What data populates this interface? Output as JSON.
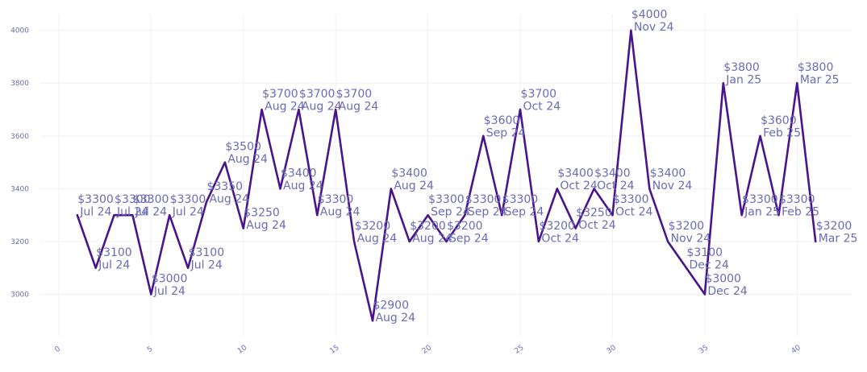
{
  "chart_data": {
    "type": "line",
    "title": "",
    "xlabel": "",
    "ylabel": "",
    "xlim": [
      -1,
      43
    ],
    "ylim": [
      2840,
      4060
    ],
    "xticks": [
      0,
      5,
      10,
      15,
      20,
      25,
      30,
      35,
      40
    ],
    "yticks": [
      3000,
      3200,
      3400,
      3600,
      3800,
      4000
    ],
    "grid": true,
    "line_color": "#4a148c",
    "label_color": "#6b6bb8",
    "series": [
      {
        "x": [
          1,
          2,
          3,
          4,
          5,
          6,
          7,
          8,
          9,
          10,
          11,
          12,
          13,
          14,
          15,
          16,
          17,
          18,
          19,
          20,
          21,
          22,
          23,
          24,
          25,
          26,
          27,
          28,
          29,
          30,
          31,
          32,
          33,
          34,
          35,
          36,
          37,
          38,
          39,
          40,
          41
        ],
        "values": [
          3300,
          3100,
          3300,
          3300,
          3000,
          3300,
          3100,
          3350,
          3500,
          3250,
          3700,
          3400,
          3700,
          3300,
          3700,
          3200,
          2900,
          3400,
          3200,
          3300,
          3200,
          3300,
          3600,
          3300,
          3700,
          3200,
          3400,
          3250,
          3400,
          3300,
          4000,
          3400,
          3200,
          3100,
          3000,
          3800,
          3300,
          3600,
          3300,
          3800,
          3200
        ],
        "point_labels": [
          "$3300",
          "$3100",
          "$3300",
          "$3300",
          "$3000",
          "$3300",
          "$3100",
          "$3350",
          "$3500",
          "$3250",
          "$3700",
          "$3400",
          "$3700",
          "$3300",
          "$3700",
          "$3200",
          "$2900",
          "$3400",
          "$3200",
          "$3300",
          "$3200",
          "$3300",
          "$3600",
          "$3300",
          "$3700",
          "$3200",
          "$3400",
          "$3250",
          "$3400",
          "$3300",
          "$4000",
          "$3400",
          "$3200",
          "$3100",
          "$3000",
          "$3800",
          "$3300",
          "$3600",
          "$3300",
          "$3800",
          "$3200"
        ],
        "point_dates": [
          "Jul 24",
          "Jul 24",
          "Jul 24",
          "Jul 24",
          "Jul 24",
          "Jul 24",
          "Jul 24",
          "Aug 24",
          "Aug 24",
          "Aug 24",
          "Aug 24",
          "Aug 24",
          "Aug 24",
          "Aug 24",
          "Aug 24",
          "Aug 24",
          "Aug 24",
          "Aug 24",
          "Aug 24",
          "Sep 24",
          "Sep 24",
          "Sep 24",
          "Sep 24",
          "Sep 24",
          "Oct 24",
          "Oct 24",
          "Oct 24",
          "Oct 24",
          "Oct 24",
          "Oct 24",
          "Nov 24",
          "Nov 24",
          "Nov 24",
          "Dec 24",
          "Dec 24",
          "Jan 25",
          "Jan 25",
          "Feb 25",
          "Feb 25",
          "Mar 25",
          "Mar 25"
        ]
      }
    ]
  }
}
